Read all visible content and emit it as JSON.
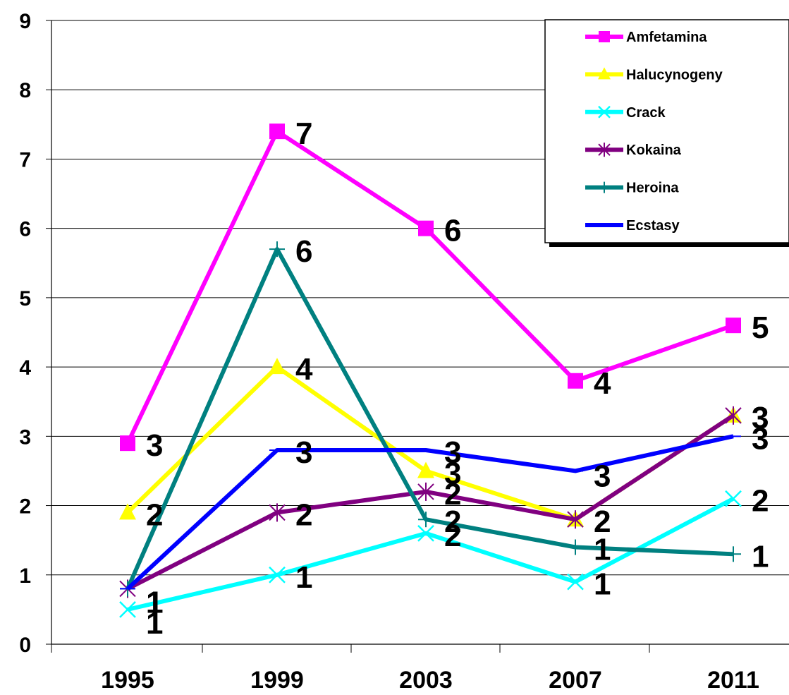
{
  "chart_data": {
    "type": "line",
    "categories": [
      "1995",
      "1999",
      "2003",
      "2007",
      "2011"
    ],
    "ylim": [
      0,
      9
    ],
    "yticks": [
      "0",
      "1",
      "2",
      "3",
      "4",
      "5",
      "6",
      "7",
      "8",
      "9"
    ],
    "grid": "horizontal",
    "legend_position": "top-right",
    "series": [
      {
        "name": "Amfetamina",
        "color": "#ff00ff",
        "marker": "square",
        "values": [
          2.9,
          7.4,
          6.0,
          3.8,
          4.6
        ],
        "labels": [
          "3",
          "7",
          "6",
          "4",
          "5"
        ]
      },
      {
        "name": "Halucynogeny",
        "color": "#ffff00",
        "marker": "triangle",
        "values": [
          1.9,
          4.0,
          2.5,
          1.8,
          3.3
        ],
        "labels": [
          "2",
          "4",
          "3",
          "2",
          "3"
        ]
      },
      {
        "name": "Crack",
        "color": "#00ffff",
        "marker": "x",
        "values": [
          0.5,
          1.0,
          1.6,
          0.9,
          2.1
        ],
        "labels": [
          "1",
          "1",
          "2",
          "1",
          "2"
        ]
      },
      {
        "name": "Kokaina",
        "color": "#800080",
        "marker": "star",
        "values": [
          0.8,
          1.9,
          2.2,
          1.8,
          3.3
        ],
        "labels": [
          "1",
          "2",
          "2",
          "2",
          "3"
        ]
      },
      {
        "name": "Heroina",
        "color": "#008080",
        "marker": "plus",
        "values": [
          0.8,
          5.7,
          1.8,
          1.4,
          1.3
        ],
        "labels": [
          "1",
          "6",
          "2",
          "1",
          "1"
        ]
      },
      {
        "name": "Ecstasy",
        "color": "#0000ff",
        "marker": "dash",
        "values": [
          0.8,
          2.8,
          2.8,
          2.5,
          3.0
        ],
        "labels": [
          "1",
          "3",
          "3",
          "3",
          "3"
        ]
      }
    ]
  }
}
